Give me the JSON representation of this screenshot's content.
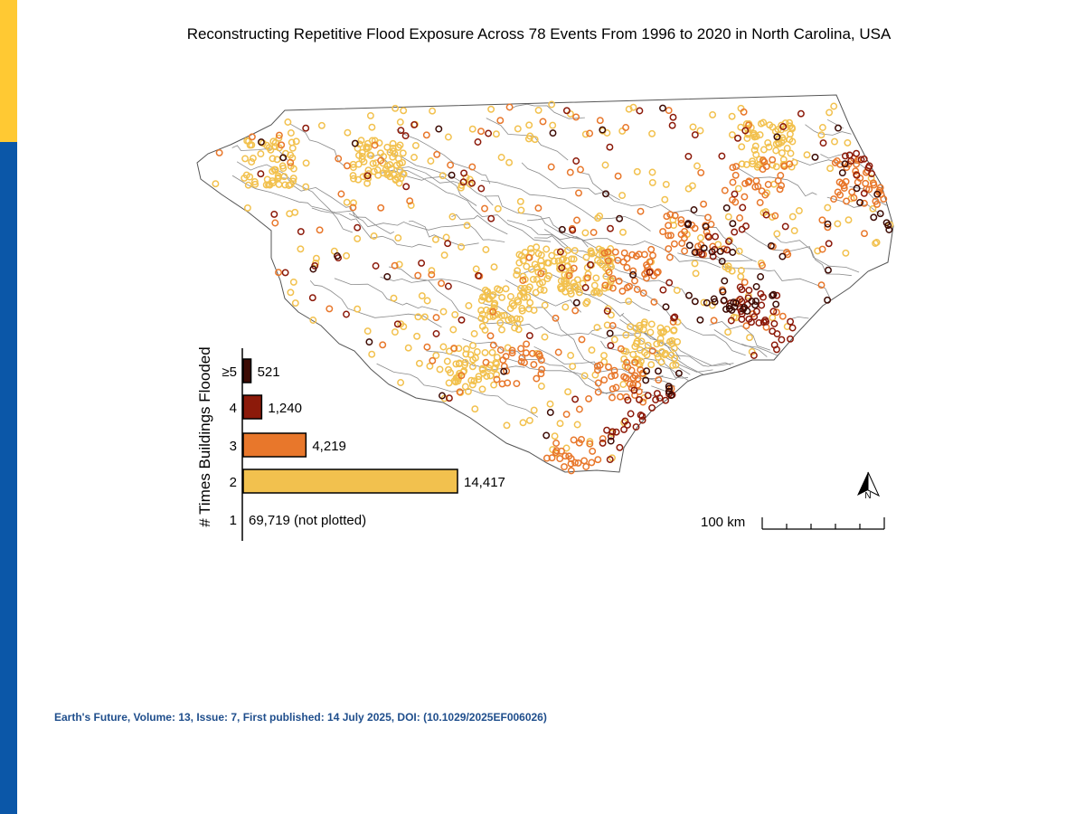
{
  "title": "Reconstructing Repetitive Flood Exposure Across 78 Events From 1996 to 2020 in North Carolina, USA",
  "citation": "Earth's Future, Volume: 13, Issue: 7, First published: 14 July 2025, DOI: (10.1029/2025EF006026)",
  "colors": {
    "accent_yellow": "#ffc933",
    "accent_blue": "#0b57a8",
    "ge5": "#3d0b04",
    "four": "#8c1a0a",
    "three": "#e8772b",
    "two": "#f2c14e",
    "citation": "#1f4e8c"
  },
  "chart_data": {
    "type": "bar",
    "orientation": "horizontal",
    "ylabel": "# Times Buildings Flooded",
    "categories": [
      "≥5",
      "4",
      "3",
      "2",
      "1"
    ],
    "values": [
      521,
      1240,
      4219,
      14417,
      69719
    ],
    "value_labels": [
      "521",
      "1,240",
      "4,219",
      "14,417",
      "69,719 (not plotted)"
    ],
    "plotted": [
      true,
      true,
      true,
      true,
      false
    ]
  },
  "map": {
    "scale_label": "100 km",
    "north_label": "N"
  }
}
